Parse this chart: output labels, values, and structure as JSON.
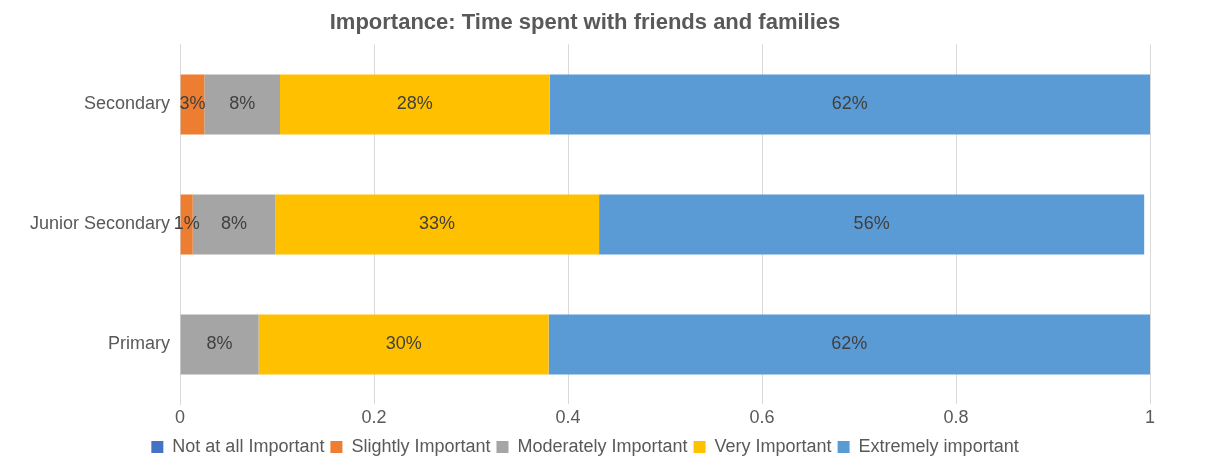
{
  "chart_data": {
    "type": "bar",
    "orientation": "horizontal",
    "stacked": true,
    "title": "Importance: Time spent with friends and families",
    "categories": [
      "Secondary",
      "Junior Secondary",
      "Primary"
    ],
    "series": [
      {
        "name": "Not at all Important",
        "color": "#4472c4",
        "values": [
          0,
          0,
          0
        ]
      },
      {
        "name": "Slightly Important",
        "color": "#ed7d31",
        "values": [
          0.025,
          0.013,
          0
        ],
        "value_labels": [
          "3%",
          "1%",
          null
        ]
      },
      {
        "name": "Moderately Important",
        "color": "#a5a5a5",
        "values": [
          0.078,
          0.085,
          0.081
        ],
        "value_labels": [
          "8%",
          "8%",
          "8%"
        ]
      },
      {
        "name": "Very Important",
        "color": "#ffc000",
        "values": [
          0.278,
          0.334,
          0.299
        ],
        "value_labels": [
          "28%",
          "33%",
          "30%"
        ]
      },
      {
        "name": "Extremely important",
        "color": "#5b9bd5",
        "values": [
          0.619,
          0.562,
          0.62
        ],
        "value_labels": [
          "62%",
          "56%",
          "62%"
        ]
      }
    ],
    "xlim": [
      0,
      1
    ],
    "xticks": [
      0,
      0.2,
      0.4,
      0.6,
      0.8,
      1
    ],
    "grid": "x",
    "legend": "bottom"
  }
}
